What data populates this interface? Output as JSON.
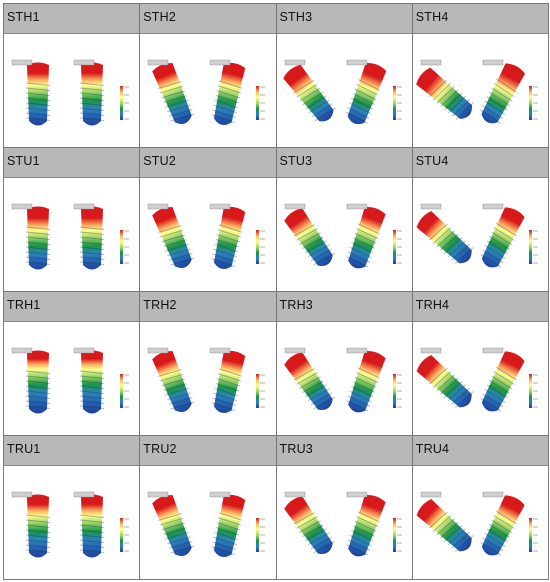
{
  "panels": [
    {
      "label": "STH1",
      "angle": 0,
      "cap": 0.28
    },
    {
      "label": "STH2",
      "angle": -22,
      "cap": 0.3
    },
    {
      "label": "STH3",
      "angle": -38,
      "cap": 0.32
    },
    {
      "label": "STH4",
      "angle": -50,
      "cap": 0.34
    },
    {
      "label": "STU1",
      "angle": 0,
      "cap": 0.3
    },
    {
      "label": "STU2",
      "angle": -22,
      "cap": 0.3
    },
    {
      "label": "STU3",
      "angle": -35,
      "cap": 0.3
    },
    {
      "label": "STU4",
      "angle": -48,
      "cap": 0.3
    },
    {
      "label": "TRH1",
      "angle": 0,
      "cap": 0.22
    },
    {
      "label": "TRH2",
      "angle": -22,
      "cap": 0.28
    },
    {
      "label": "TRH3",
      "angle": -35,
      "cap": 0.3
    },
    {
      "label": "TRH4",
      "angle": -48,
      "cap": 0.3
    },
    {
      "label": "TRU1",
      "angle": 0,
      "cap": 0.26
    },
    {
      "label": "TRU2",
      "angle": -22,
      "cap": 0.28
    },
    {
      "label": "TRU3",
      "angle": -35,
      "cap": 0.3
    },
    {
      "label": "TRU4",
      "angle": -48,
      "cap": 0.3
    }
  ],
  "colors": {
    "header_bg": "#b8b8b8",
    "scale": [
      "#d7191c",
      "#fdae61",
      "#ffff8c",
      "#a6d96a",
      "#1a9641",
      "#2b83ba",
      "#1f3f9e"
    ],
    "annotation_bg": "#cfcfcf"
  }
}
